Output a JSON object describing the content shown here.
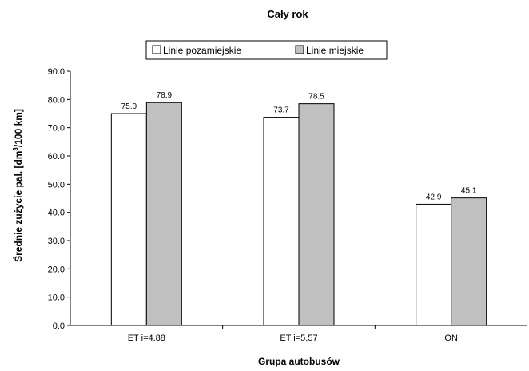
{
  "chart_data": {
    "type": "bar",
    "title": "Cały rok",
    "xlabel": "Grupa autobusów",
    "ylabel_main": "Średnie zużycie pal. [dm",
    "ylabel_sup": "3",
    "ylabel_end": "/100 km]",
    "categories": [
      "ET i=4.88",
      "ET i=5.57",
      "ON"
    ],
    "series": [
      {
        "name": "Linie pozamiejskie",
        "values": [
          75.0,
          73.7,
          42.9
        ],
        "labels": [
          "75.0",
          "73.7",
          "42.9"
        ],
        "color": "#ffffff"
      },
      {
        "name": "Linie miejskie",
        "values": [
          78.9,
          78.5,
          45.1
        ],
        "labels": [
          "78.9",
          "78.5",
          "45.1"
        ],
        "color": "#c0c0c0"
      }
    ],
    "ylim": [
      0,
      90
    ],
    "yticks": [
      "0.0",
      "10.0",
      "20.0",
      "30.0",
      "40.0",
      "50.0",
      "60.0",
      "70.0",
      "80.0",
      "90.0"
    ],
    "legend_position": "top",
    "grid": false
  }
}
